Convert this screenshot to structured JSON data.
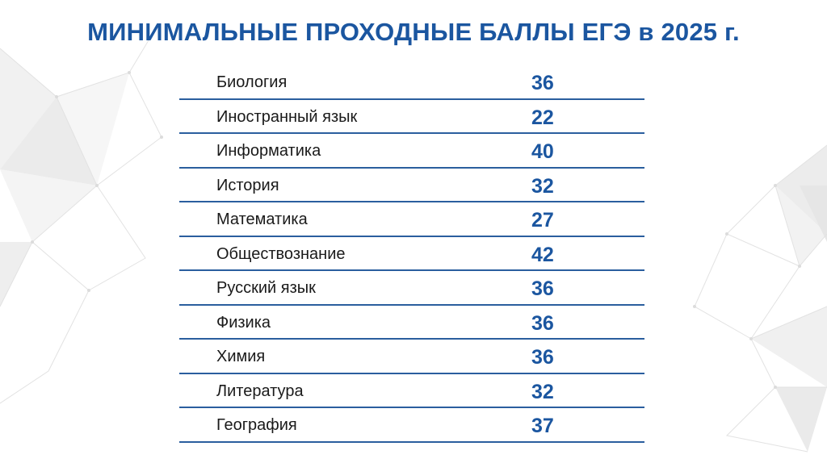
{
  "slide": {
    "title": "МИНИМАЛЬНЫЕ ПРОХОДНЫЕ БАЛЛЫ ЕГЭ в 2025 г."
  },
  "table": {
    "rows": [
      {
        "subject": "Биология",
        "score": "36"
      },
      {
        "subject": "Иностранный язык",
        "score": "22"
      },
      {
        "subject": "Информатика",
        "score": "40"
      },
      {
        "subject": "История",
        "score": "32"
      },
      {
        "subject": "Математика",
        "score": "27"
      },
      {
        "subject": "Обществознание",
        "score": "42"
      },
      {
        "subject": "Русский язык",
        "score": "36"
      },
      {
        "subject": "Физика",
        "score": "36"
      },
      {
        "subject": "Химия",
        "score": "36"
      },
      {
        "subject": "Литература",
        "score": "32"
      },
      {
        "subject": "География",
        "score": "37"
      }
    ]
  },
  "colors": {
    "accent": "#1b56a0",
    "divider": "#2a5e9e",
    "text": "#1a1a1a",
    "decor": "#e6e6e6"
  }
}
